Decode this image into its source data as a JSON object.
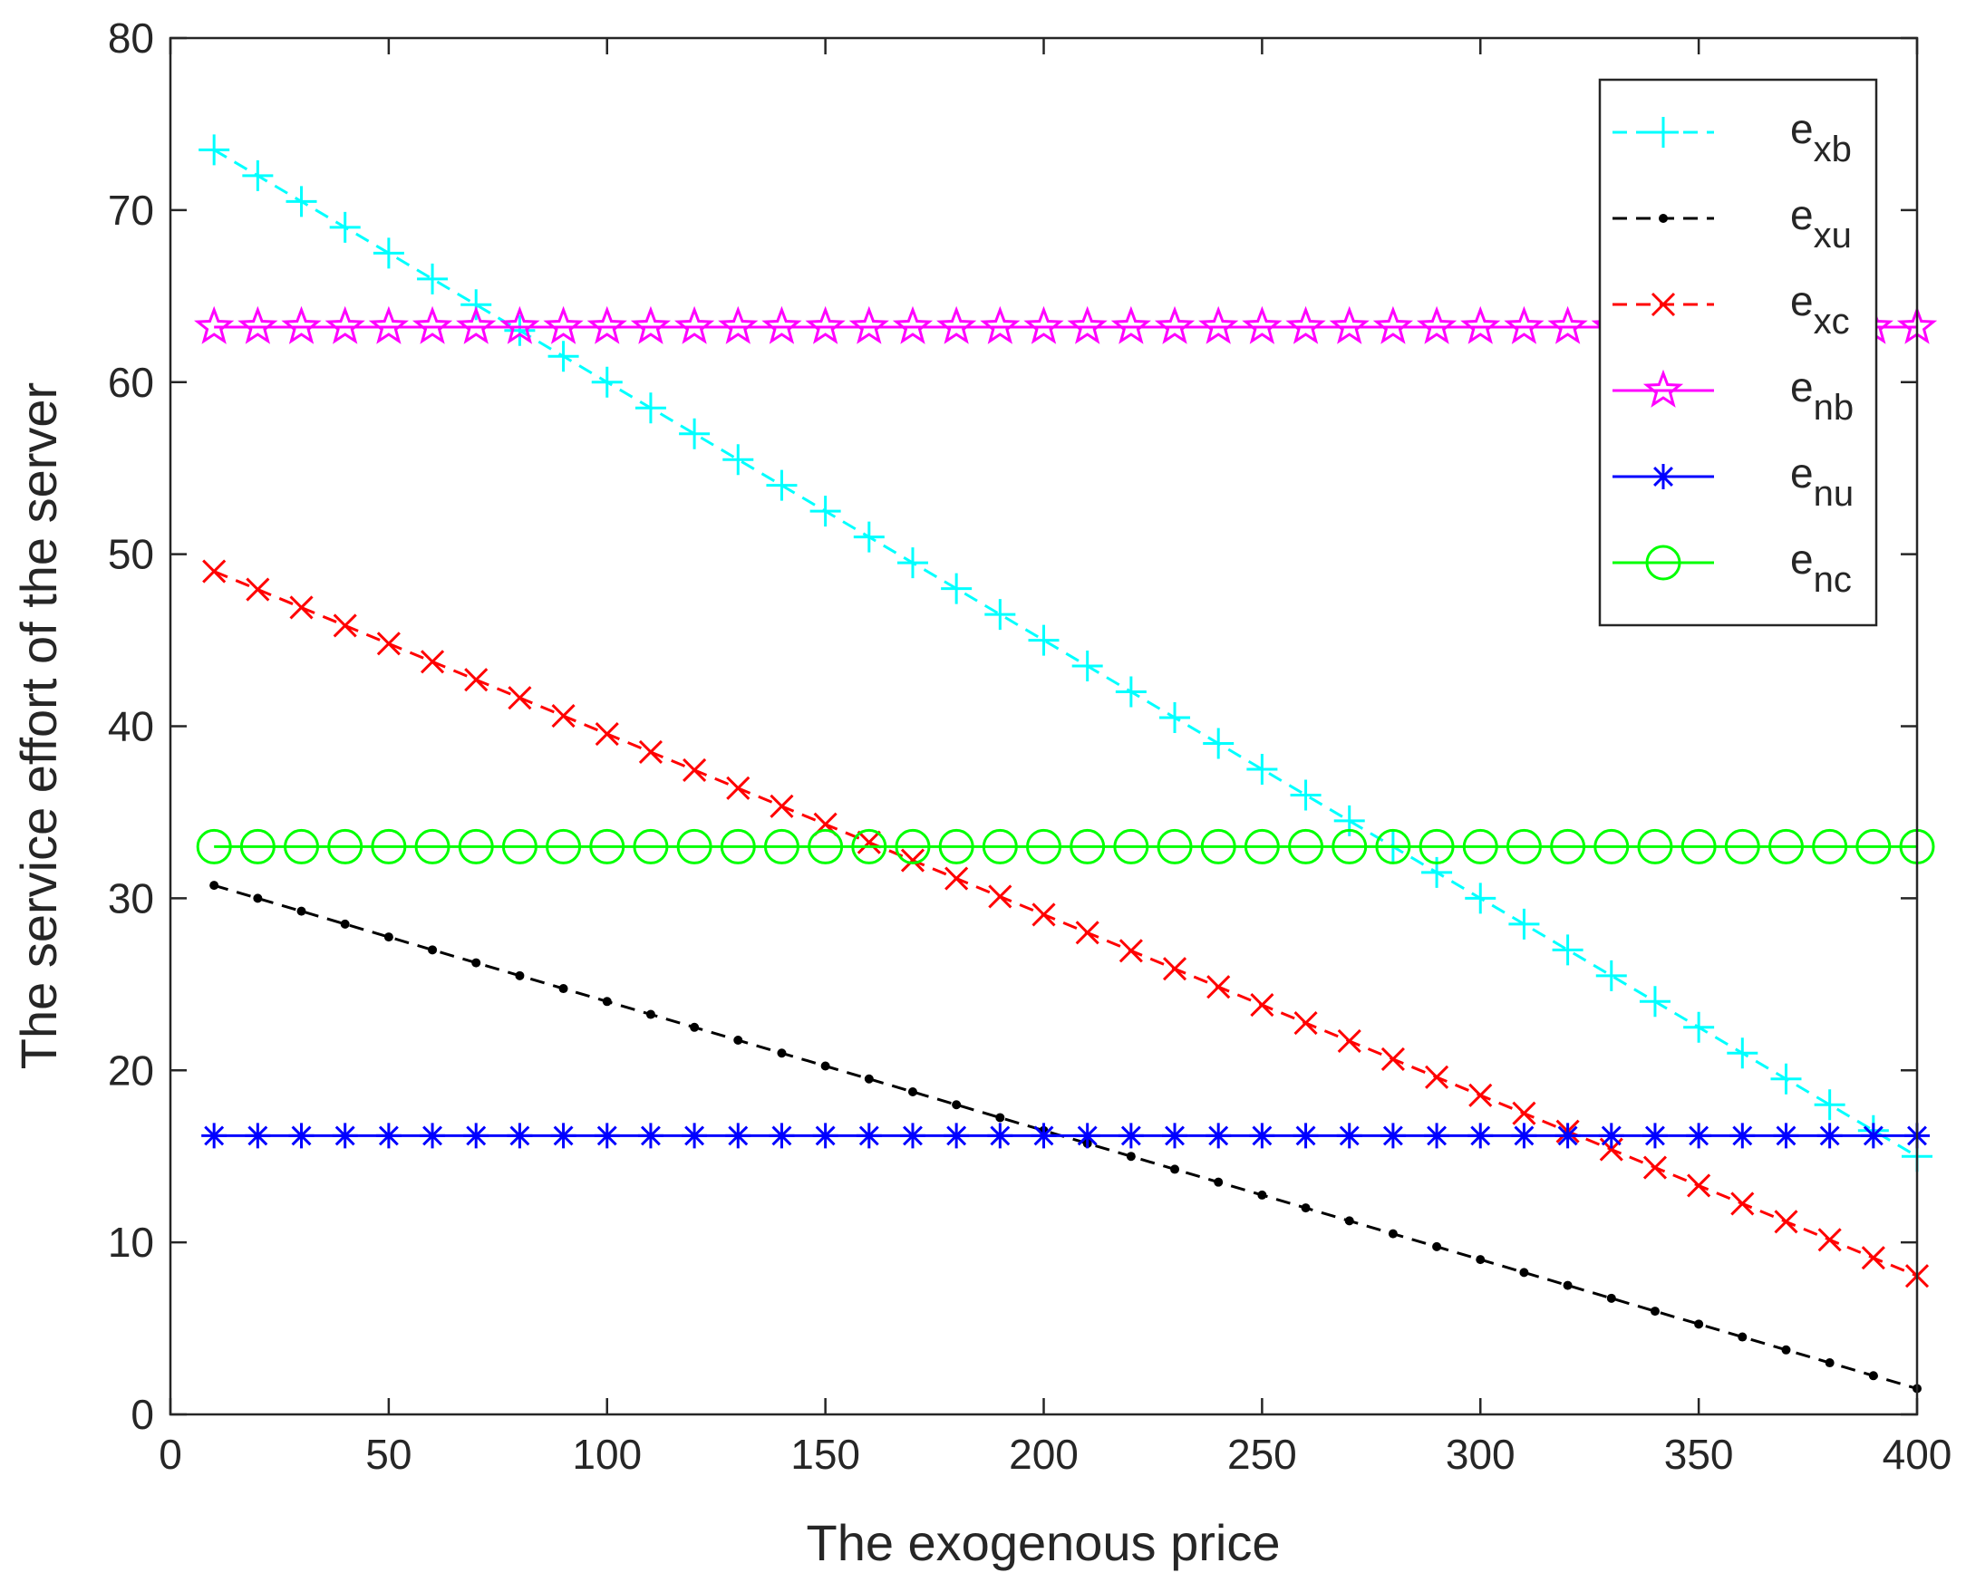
{
  "chart_data": {
    "type": "line",
    "title": "",
    "xlabel": "The exogenous price",
    "ylabel": "The service effort of the server",
    "xlim": [
      0,
      400
    ],
    "ylim": [
      0,
      80
    ],
    "xticks": [
      0,
      50,
      100,
      150,
      200,
      250,
      300,
      350,
      400
    ],
    "yticks": [
      0,
      10,
      20,
      30,
      40,
      50,
      60,
      70,
      80
    ],
    "legend_position": "top-right",
    "x": [
      10,
      20,
      30,
      40,
      50,
      60,
      70,
      80,
      90,
      100,
      110,
      120,
      130,
      140,
      150,
      160,
      170,
      180,
      190,
      200,
      210,
      220,
      230,
      240,
      250,
      260,
      270,
      280,
      290,
      300,
      310,
      320,
      330,
      340,
      350,
      360,
      370,
      380,
      390,
      400
    ],
    "series": [
      {
        "name": "e_xb",
        "base": "e",
        "sub": "xb",
        "color": "#00FFFF",
        "line": "dashed",
        "marker": "plus",
        "values": [
          73.5,
          72.0,
          70.5,
          69.0,
          67.5,
          66.0,
          64.5,
          63.0,
          61.5,
          60.0,
          58.5,
          57.0,
          55.5,
          54.0,
          52.5,
          51.0,
          49.5,
          48.0,
          46.5,
          45.0,
          43.5,
          42.0,
          40.5,
          39.0,
          37.5,
          36.0,
          34.5,
          33.0,
          31.5,
          30.0,
          28.5,
          27.0,
          25.5,
          24.0,
          22.5,
          21.0,
          19.5,
          18.0,
          16.5,
          15.0
        ]
      },
      {
        "name": "e_xu",
        "base": "e",
        "sub": "xu",
        "color": "#000000",
        "line": "dashed",
        "marker": "dot",
        "values": [
          30.75,
          30.0,
          29.25,
          28.5,
          27.75,
          27.0,
          26.25,
          25.5,
          24.75,
          24.0,
          23.25,
          22.5,
          21.75,
          21.0,
          20.25,
          19.5,
          18.75,
          18.0,
          17.25,
          16.5,
          15.75,
          15.0,
          14.25,
          13.5,
          12.75,
          12.0,
          11.25,
          10.5,
          9.75,
          9.0,
          8.25,
          7.5,
          6.75,
          6.0,
          5.25,
          4.5,
          3.75,
          3.0,
          2.25,
          1.5
        ]
      },
      {
        "name": "e_xc",
        "base": "e",
        "sub": "xc",
        "color": "#FF0000",
        "line": "dashed",
        "marker": "x",
        "values": [
          49.0,
          47.95,
          46.9,
          45.85,
          44.8,
          43.75,
          42.7,
          41.65,
          40.6,
          39.55,
          38.5,
          37.45,
          36.4,
          35.35,
          34.3,
          33.25,
          32.2,
          31.15,
          30.1,
          29.05,
          28.0,
          26.95,
          25.9,
          24.85,
          23.8,
          22.75,
          21.7,
          20.65,
          19.6,
          18.55,
          17.5,
          16.45,
          15.4,
          14.35,
          13.3,
          12.25,
          11.2,
          10.15,
          9.1,
          8.05
        ]
      },
      {
        "name": "e_nb",
        "base": "e",
        "sub": "nb",
        "color": "#FF00FF",
        "line": "solid",
        "marker": "star",
        "values": [
          63.2,
          63.2,
          63.2,
          63.2,
          63.2,
          63.2,
          63.2,
          63.2,
          63.2,
          63.2,
          63.2,
          63.2,
          63.2,
          63.2,
          63.2,
          63.2,
          63.2,
          63.2,
          63.2,
          63.2,
          63.2,
          63.2,
          63.2,
          63.2,
          63.2,
          63.2,
          63.2,
          63.2,
          63.2,
          63.2,
          63.2,
          63.2,
          63.2,
          63.2,
          63.2,
          63.2,
          63.2,
          63.2,
          63.2,
          63.2
        ]
      },
      {
        "name": "e_nu",
        "base": "e",
        "sub": "nu",
        "color": "#0000FF",
        "line": "solid",
        "marker": "asterisk",
        "values": [
          16.2,
          16.2,
          16.2,
          16.2,
          16.2,
          16.2,
          16.2,
          16.2,
          16.2,
          16.2,
          16.2,
          16.2,
          16.2,
          16.2,
          16.2,
          16.2,
          16.2,
          16.2,
          16.2,
          16.2,
          16.2,
          16.2,
          16.2,
          16.2,
          16.2,
          16.2,
          16.2,
          16.2,
          16.2,
          16.2,
          16.2,
          16.2,
          16.2,
          16.2,
          16.2,
          16.2,
          16.2,
          16.2,
          16.2,
          16.2
        ]
      },
      {
        "name": "e_nc",
        "base": "e",
        "sub": "nc",
        "color": "#00FF00",
        "line": "solid",
        "marker": "circle",
        "values": [
          33.0,
          33.0,
          33.0,
          33.0,
          33.0,
          33.0,
          33.0,
          33.0,
          33.0,
          33.0,
          33.0,
          33.0,
          33.0,
          33.0,
          33.0,
          33.0,
          33.0,
          33.0,
          33.0,
          33.0,
          33.0,
          33.0,
          33.0,
          33.0,
          33.0,
          33.0,
          33.0,
          33.0,
          33.0,
          33.0,
          33.0,
          33.0,
          33.0,
          33.0,
          33.0,
          33.0,
          33.0,
          33.0,
          33.0,
          33.0
        ]
      }
    ]
  }
}
